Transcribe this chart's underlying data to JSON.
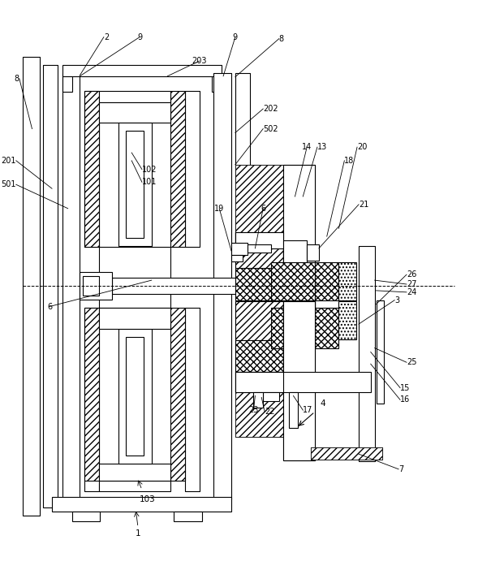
{
  "bg_color": "#ffffff",
  "lc": "#000000",
  "fig_w": 5.89,
  "fig_h": 7.02,
  "dpi": 100
}
